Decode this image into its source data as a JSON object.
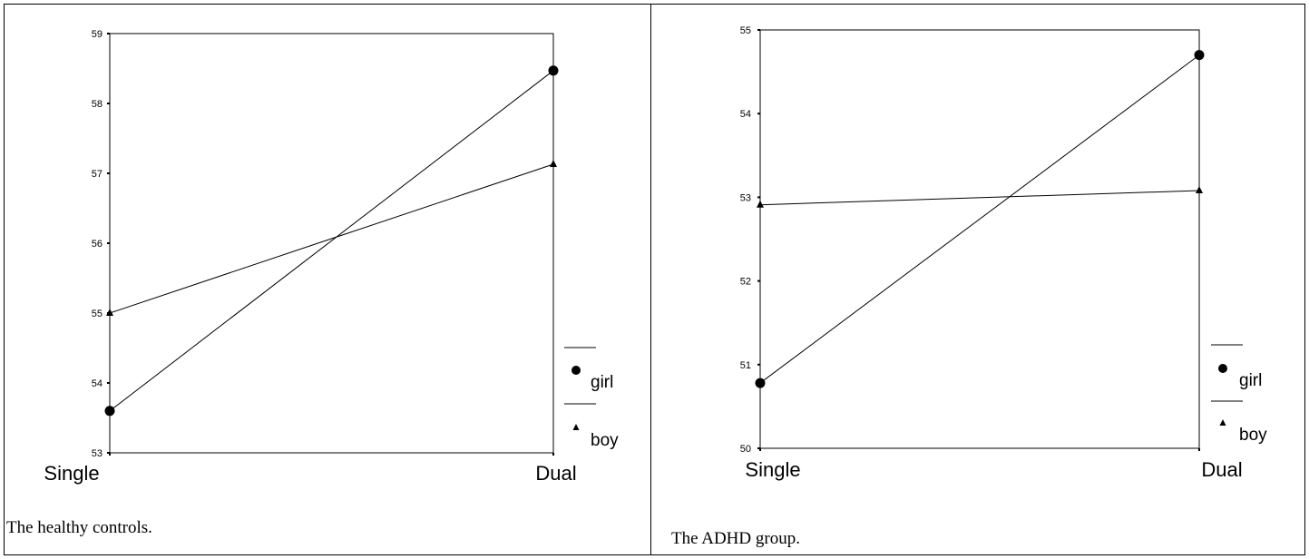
{
  "charts": {
    "chart_data": [
      {
        "type": "line",
        "categories": [
          "Single",
          "Dual"
        ],
        "series": [
          {
            "name": "girl",
            "values": [
              53.6,
              58.47
            ],
            "marker": "circle"
          },
          {
            "name": "boy",
            "values": [
              55.0,
              57.13
            ],
            "marker": "triangle"
          }
        ],
        "ylim": [
          53,
          59
        ],
        "yticks": [
          "53",
          "54",
          "55",
          "56",
          "57",
          "58",
          "59"
        ],
        "caption": "The healthy controls.",
        "legend_position": "right"
      },
      {
        "type": "line",
        "categories": [
          "Single",
          "Dual"
        ],
        "series": [
          {
            "name": "girl",
            "values": [
              50.78,
              54.7
            ],
            "marker": "circle"
          },
          {
            "name": "boy",
            "values": [
              52.91,
              53.08
            ],
            "marker": "triangle"
          }
        ],
        "ylim": [
          50,
          55
        ],
        "yticks": [
          "50",
          "51",
          "52",
          "53",
          "54",
          "55"
        ],
        "caption": "The ADHD group.",
        "legend_position": "right"
      }
    ]
  },
  "colors": {
    "line": "#000000",
    "background": "#ffffff"
  }
}
